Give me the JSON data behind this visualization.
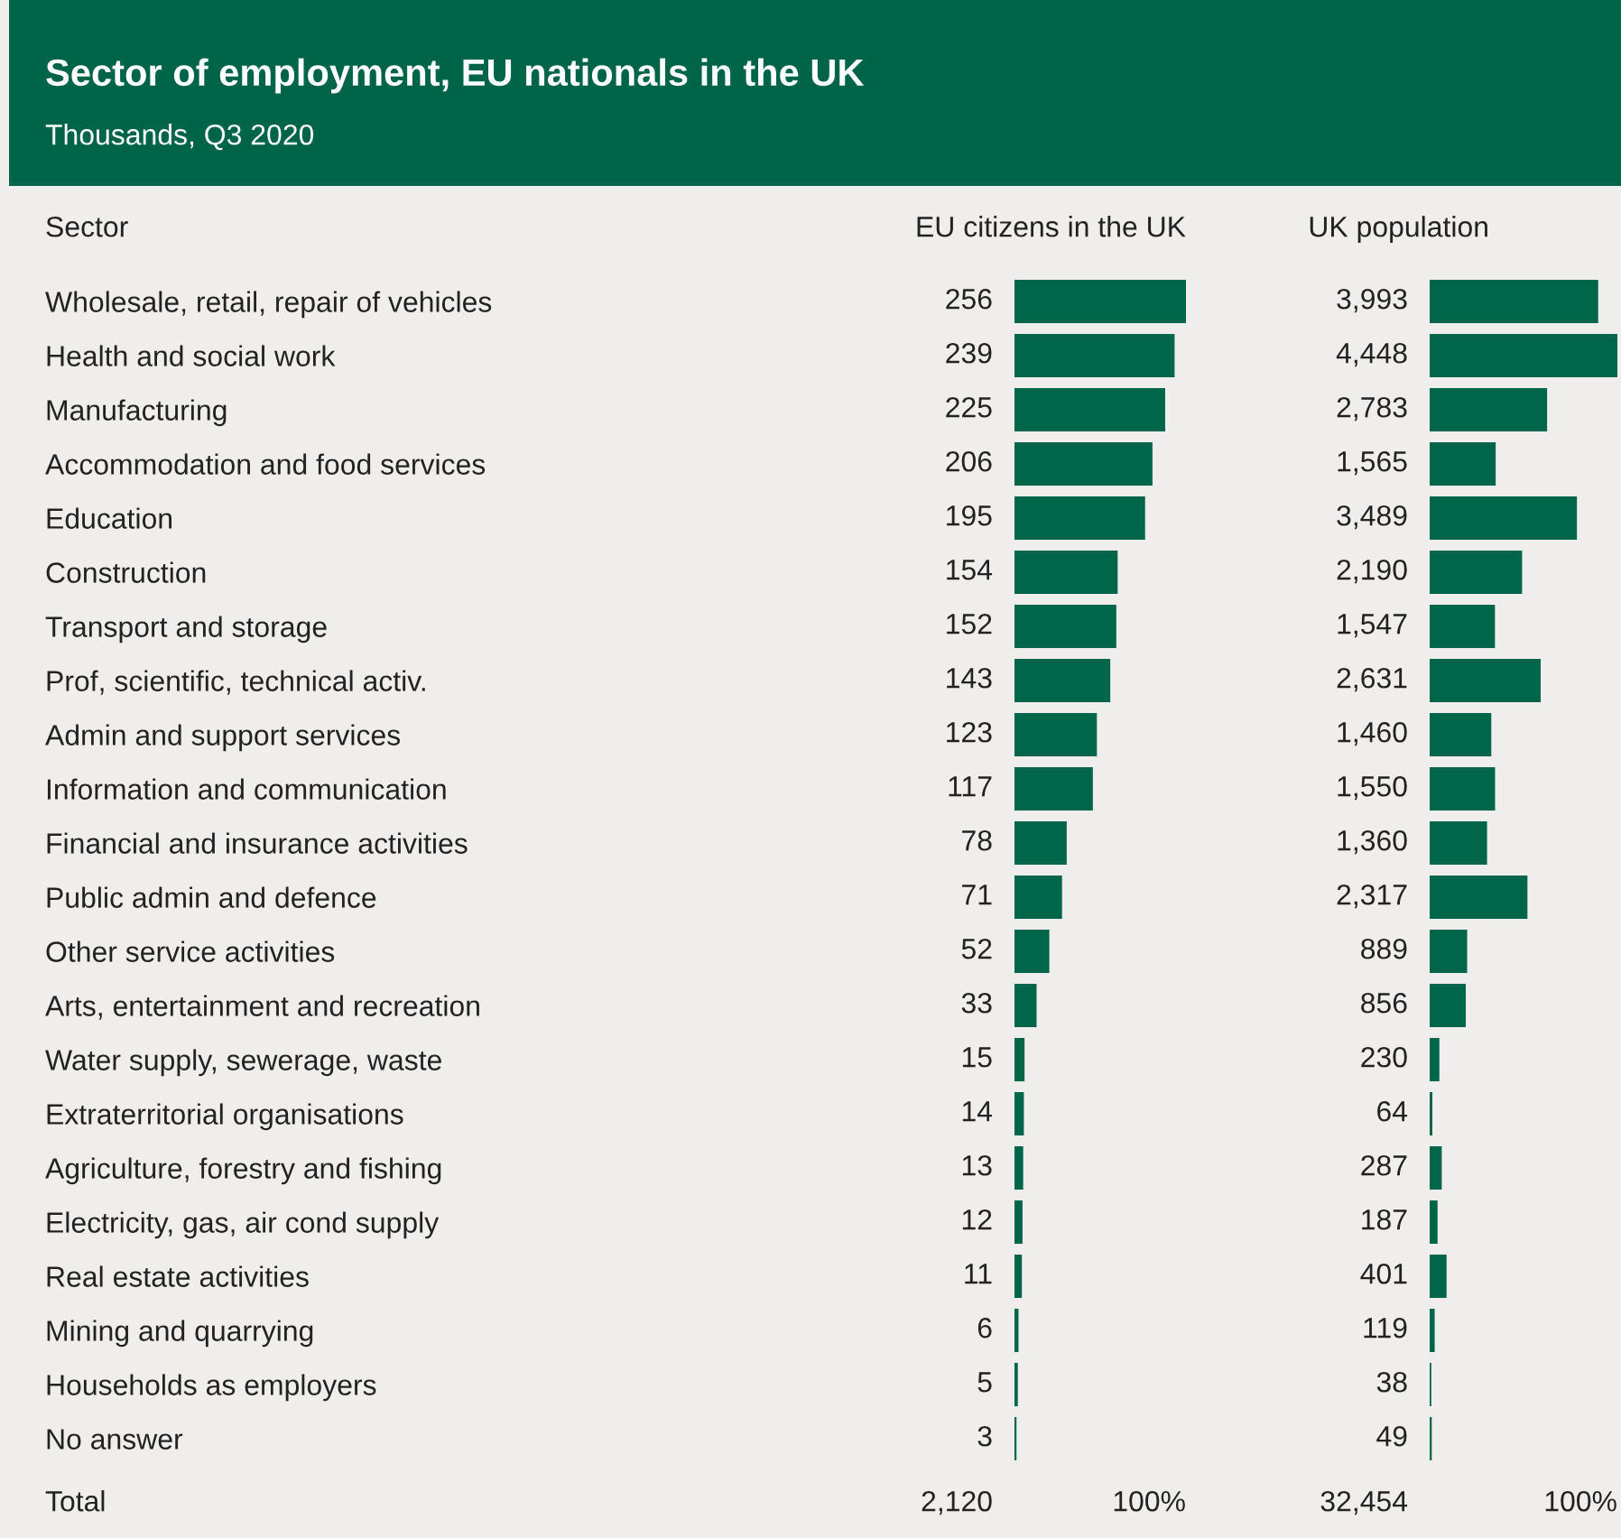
{
  "chart_data": [
    {
      "type": "bar",
      "orientation": "horizontal",
      "title": "Sector of employment, EU nationals in the UK",
      "subtitle": "Thousands, Q3 2020",
      "ylabel": "Sector",
      "xlabel": "EU citizens in the UK",
      "color": "#00664a",
      "data_labels": true,
      "grid": false,
      "legend": false,
      "categories": [
        "Wholesale, retail, repair of vehicles",
        "Health and social work",
        "Manufacturing",
        "Accommodation and food services",
        "Education",
        "Construction",
        "Transport and storage",
        "Prof, scientific, technical activ.",
        "Admin and support services",
        "Information and communication",
        "Financial and insurance activities",
        "Public admin and defence",
        "Other service activities",
        "Arts, entertainment and recreation",
        "Water supply, sewerage, waste",
        "Extraterritorial organisations",
        "Agriculture, forestry and fishing",
        "Electricity, gas, air cond supply",
        "Real estate activities",
        "Mining and quarrying",
        "Households as employers",
        "No answer"
      ],
      "values": [
        256,
        239,
        225,
        206,
        195,
        154,
        152,
        143,
        123,
        117,
        78,
        71,
        52,
        33,
        15,
        14,
        13,
        12,
        11,
        6,
        5,
        3
      ],
      "annotations": [
        "Total",
        "2,120",
        "100%"
      ]
    },
    {
      "type": "bar",
      "orientation": "horizontal",
      "xlabel": "UK population",
      "color": "#00664a",
      "grid": false,
      "legend": false,
      "categories": [
        null,
        null,
        null,
        null,
        null,
        null,
        null,
        null,
        null,
        null,
        null,
        null,
        null,
        null,
        null,
        null,
        null,
        null,
        null,
        null,
        null,
        null
      ],
      "values": [
        3993,
        4448,
        2783,
        1565,
        3489,
        2190,
        1547,
        2631,
        1460,
        1550,
        1360,
        2317,
        889,
        856,
        230,
        64,
        287,
        187,
        401,
        119,
        38,
        49
      ],
      "value_labels": [
        "3,993",
        "4,448",
        "2,783",
        "1,565",
        "3,489",
        "2,190",
        "1,547",
        "2,631",
        "1,460",
        "1,550",
        "1,360",
        "2,317",
        "889",
        "856",
        "230",
        "64",
        "287",
        "187",
        "401",
        "119",
        "38",
        "49"
      ],
      "annotations": [
        "32,454",
        "100%"
      ]
    }
  ]
}
